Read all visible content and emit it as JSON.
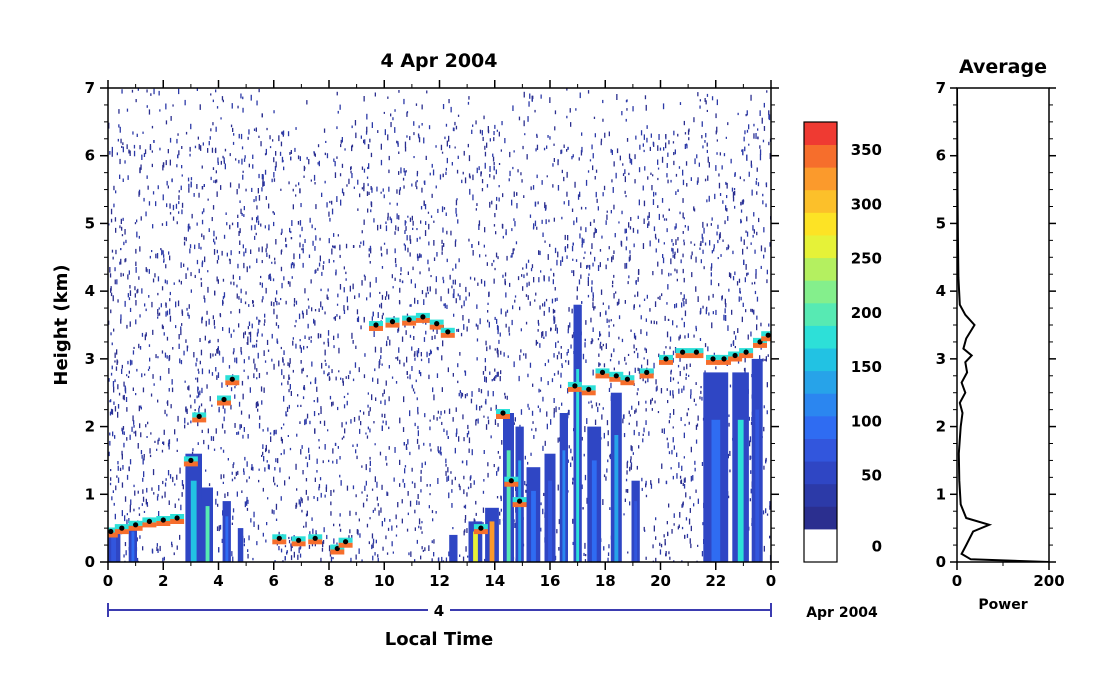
{
  "chart_data": [
    {
      "type": "heatmap",
      "title": "4 Apr 2004",
      "xlabel": "Local Time",
      "ylabel": "Height (km)",
      "xlim": [
        0,
        24
      ],
      "ylim": [
        0,
        7
      ],
      "x_ticks": [
        "0",
        "2",
        "4",
        "6",
        "8",
        "10",
        "12",
        "14",
        "16",
        "18",
        "20",
        "22",
        "0"
      ],
      "y_ticks": [
        "0",
        "1",
        "2",
        "3",
        "4",
        "5",
        "6",
        "7"
      ],
      "date_axis": {
        "day_label": "4",
        "month_label": "Apr 2004"
      },
      "colorbar": {
        "min": 0,
        "max": 375,
        "tick_labels": [
          "0",
          "50",
          "100",
          "150",
          "200",
          "250",
          "300",
          "350"
        ],
        "colors": [
          "#2b2f8f",
          "#2c3aa8",
          "#2f46c4",
          "#3256dd",
          "#2f6cf2",
          "#2b86f0",
          "#27a3e9",
          "#22c2e3",
          "#2de0d8",
          "#57eab3",
          "#84ef8c",
          "#b4f060",
          "#e6f238",
          "#fde325",
          "#fcc02a",
          "#fb9a2c",
          "#f66e2c",
          "#ef3a32"
        ]
      },
      "cloud_base_height_km": [
        {
          "x": 0.1,
          "y": 0.45
        },
        {
          "x": 0.5,
          "y": 0.5
        },
        {
          "x": 1.0,
          "y": 0.55
        },
        {
          "x": 1.5,
          "y": 0.6
        },
        {
          "x": 2.0,
          "y": 0.62
        },
        {
          "x": 2.5,
          "y": 0.65
        },
        {
          "x": 3.0,
          "y": 1.5
        },
        {
          "x": 3.3,
          "y": 2.15
        },
        {
          "x": 4.2,
          "y": 2.4
        },
        {
          "x": 4.5,
          "y": 2.7
        },
        {
          "x": 6.2,
          "y": 0.35
        },
        {
          "x": 6.9,
          "y": 0.32
        },
        {
          "x": 7.5,
          "y": 0.35
        },
        {
          "x": 8.3,
          "y": 0.2
        },
        {
          "x": 8.6,
          "y": 0.3
        },
        {
          "x": 9.7,
          "y": 3.5
        },
        {
          "x": 10.3,
          "y": 3.55
        },
        {
          "x": 10.9,
          "y": 3.58
        },
        {
          "x": 11.4,
          "y": 3.62
        },
        {
          "x": 11.9,
          "y": 3.52
        },
        {
          "x": 12.3,
          "y": 3.4
        },
        {
          "x": 13.5,
          "y": 0.5
        },
        {
          "x": 14.3,
          "y": 2.2
        },
        {
          "x": 14.6,
          "y": 1.2
        },
        {
          "x": 14.9,
          "y": 0.9
        },
        {
          "x": 16.9,
          "y": 2.6
        },
        {
          "x": 17.4,
          "y": 2.55
        },
        {
          "x": 17.9,
          "y": 2.8
        },
        {
          "x": 18.4,
          "y": 2.75
        },
        {
          "x": 18.8,
          "y": 2.7
        },
        {
          "x": 19.5,
          "y": 2.8
        },
        {
          "x": 20.2,
          "y": 3.0
        },
        {
          "x": 20.8,
          "y": 3.1
        },
        {
          "x": 21.3,
          "y": 3.1
        },
        {
          "x": 21.9,
          "y": 3.0
        },
        {
          "x": 22.3,
          "y": 3.0
        },
        {
          "x": 22.7,
          "y": 3.05
        },
        {
          "x": 23.1,
          "y": 3.1
        },
        {
          "x": 23.6,
          "y": 3.25
        },
        {
          "x": 23.9,
          "y": 3.35
        }
      ]
    },
    {
      "type": "line",
      "title": "Average",
      "xlabel": "Power",
      "ylabel": "",
      "xlim": [
        0,
        200
      ],
      "ylim": [
        0,
        7
      ],
      "x_ticks": [
        "0",
        "200"
      ],
      "y_ticks": [
        "0",
        "1",
        "2",
        "3",
        "4",
        "5",
        "6",
        "7"
      ],
      "profile": [
        {
          "power": 200,
          "height": 0.0
        },
        {
          "power": 30,
          "height": 0.04
        },
        {
          "power": 10,
          "height": 0.12
        },
        {
          "power": 20,
          "height": 0.25
        },
        {
          "power": 35,
          "height": 0.45
        },
        {
          "power": 70,
          "height": 0.55
        },
        {
          "power": 20,
          "height": 0.65
        },
        {
          "power": 8,
          "height": 0.85
        },
        {
          "power": 5,
          "height": 1.2
        },
        {
          "power": 4,
          "height": 1.6
        },
        {
          "power": 8,
          "height": 2.0
        },
        {
          "power": 12,
          "height": 2.2
        },
        {
          "power": 6,
          "height": 2.35
        },
        {
          "power": 18,
          "height": 2.5
        },
        {
          "power": 10,
          "height": 2.65
        },
        {
          "power": 22,
          "height": 2.8
        },
        {
          "power": 18,
          "height": 2.95
        },
        {
          "power": 32,
          "height": 3.05
        },
        {
          "power": 14,
          "height": 3.15
        },
        {
          "power": 20,
          "height": 3.3
        },
        {
          "power": 38,
          "height": 3.5
        },
        {
          "power": 18,
          "height": 3.65
        },
        {
          "power": 6,
          "height": 3.8
        },
        {
          "power": 3,
          "height": 4.2
        },
        {
          "power": 2,
          "height": 4.8
        },
        {
          "power": 1,
          "height": 5.5
        },
        {
          "power": 0,
          "height": 7.0
        }
      ]
    }
  ]
}
